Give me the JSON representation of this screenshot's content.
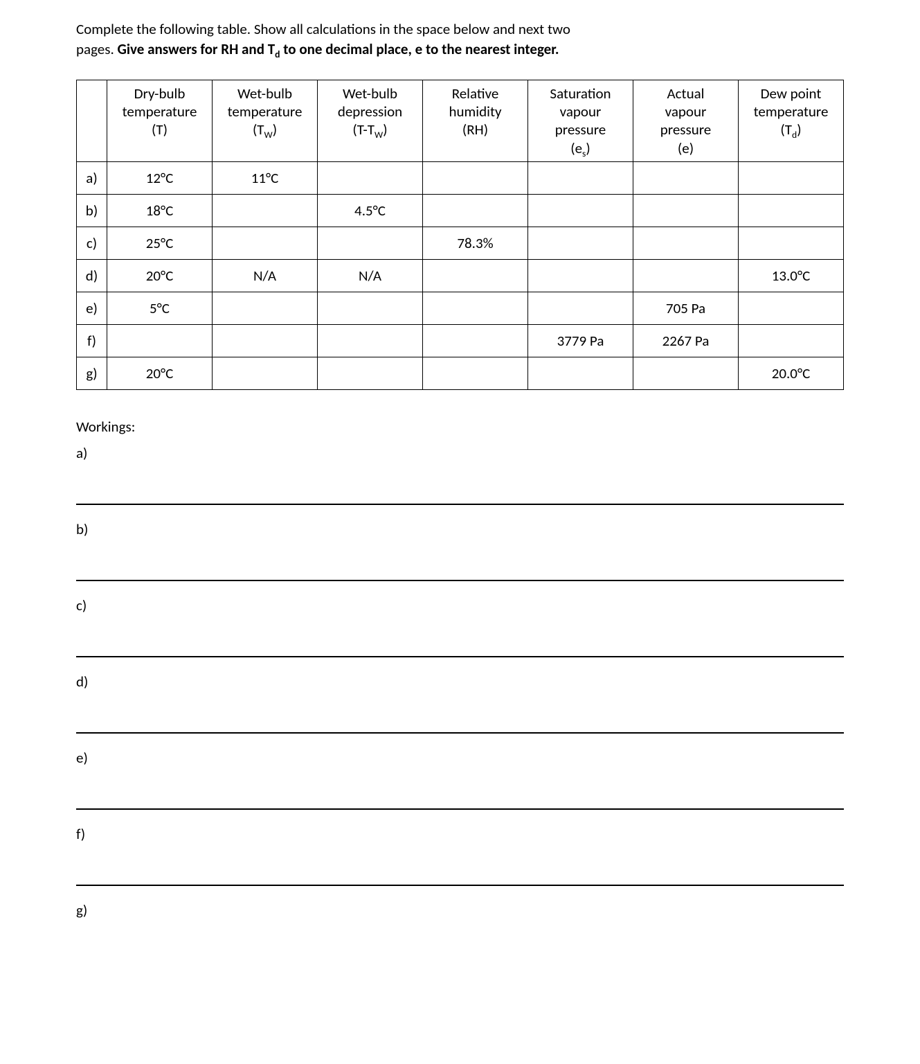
{
  "instructions": {
    "line1": "Complete the following table. Show all calculations in the space below and next two",
    "line2_prefix": "pages. ",
    "line2_bold_pre": "Give answers for RH and T",
    "line2_bold_sub": "d",
    "line2_bold_post": " to one decimal place, e to the nearest integer."
  },
  "table": {
    "headers": {
      "c1_l1": "Dry-bulb",
      "c1_l2": "temperature",
      "c1_l3": "(T)",
      "c2_l1": "Wet-bulb",
      "c2_l2": "temperature",
      "c2_l3_pre": "(T",
      "c2_l3_sub": "W",
      "c2_l3_post": ")",
      "c3_l1": "Wet-bulb",
      "c3_l2": "depression",
      "c3_l3_pre": "(T-T",
      "c3_l3_sub": "W",
      "c3_l3_post": ")",
      "c4_l1": "Relative",
      "c4_l2": "humidity",
      "c4_l3": "(RH)",
      "c5_l1": "Saturation",
      "c5_l2": "vapour",
      "c5_l3": "pressure",
      "c5_l4_pre": "(e",
      "c5_l4_sub": "s",
      "c5_l4_post": ")",
      "c6_l1": "Actual",
      "c6_l2": "vapour",
      "c6_l3": "pressure",
      "c6_l4": "(e)",
      "c7_l1": "Dew point",
      "c7_l2": "temperature",
      "c7_l3_pre": "(T",
      "c7_l3_sub": "d",
      "c7_l3_post": ")"
    },
    "rows": [
      {
        "label": "a)",
        "c1": "12°C",
        "c2": "11°C",
        "c3": "",
        "c4": "",
        "c5": "",
        "c6": "",
        "c7": ""
      },
      {
        "label": "b)",
        "c1": "18°C",
        "c2": "",
        "c3": "4.5°C",
        "c4": "",
        "c5": "",
        "c6": "",
        "c7": ""
      },
      {
        "label": "c)",
        "c1": "25°C",
        "c2": "",
        "c3": "",
        "c4": "78.3%",
        "c5": "",
        "c6": "",
        "c7": ""
      },
      {
        "label": "d)",
        "c1": "20°C",
        "c2": "N/A",
        "c3": "N/A",
        "c4": "",
        "c5": "",
        "c6": "",
        "c7": "13.0°C"
      },
      {
        "label": "e)",
        "c1": "5°C",
        "c2": "",
        "c3": "",
        "c4": "",
        "c5": "",
        "c6": "705 Pa",
        "c7": ""
      },
      {
        "label": "f)",
        "c1": "",
        "c2": "",
        "c3": "",
        "c4": "",
        "c5": "3779 Pa",
        "c6": "2267 Pa",
        "c7": ""
      },
      {
        "label": "g)",
        "c1": "20°C",
        "c2": "",
        "c3": "",
        "c4": "",
        "c5": "",
        "c6": "",
        "c7": "20.0°C"
      }
    ]
  },
  "workings": {
    "title": "Workings:",
    "items": [
      "a)",
      "b)",
      "c)",
      "d)",
      "e)",
      "f)",
      "g)"
    ]
  }
}
